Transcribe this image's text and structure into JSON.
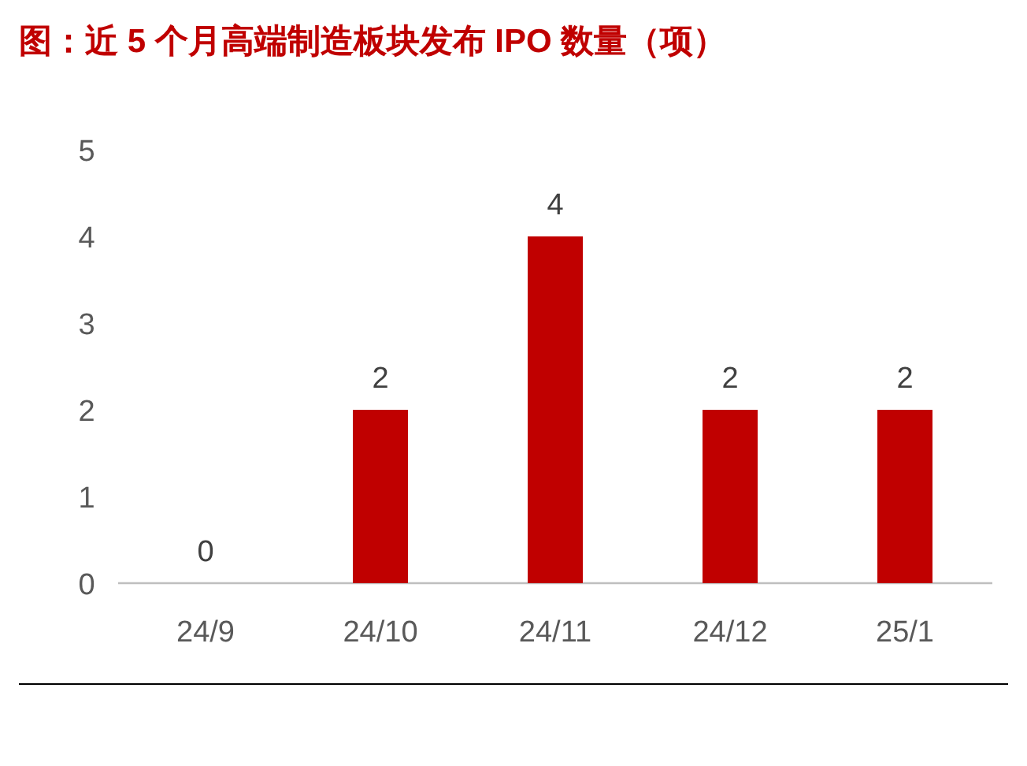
{
  "chart_data": {
    "type": "bar",
    "title": "图：近 5 个月高端制造板块发布 IPO 数量（项）",
    "categories": [
      "24/9",
      "24/10",
      "24/11",
      "24/12",
      "25/1"
    ],
    "values": [
      0,
      2,
      4,
      2,
      2
    ],
    "color": "#c00000",
    "ylim": [
      0,
      5
    ],
    "yticks": [
      0,
      1,
      2,
      3,
      4,
      5
    ],
    "data_labels": true,
    "grid": false
  }
}
